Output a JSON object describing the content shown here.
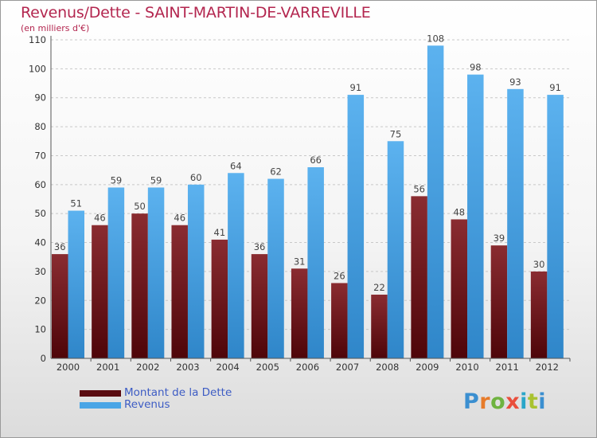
{
  "chart_data": {
    "type": "bar",
    "title": "Revenus/Dette - SAINT-MARTIN-DE-VARREVILLE",
    "subtitle": "(en milliers d'€)",
    "categories": [
      "2000",
      "2001",
      "2002",
      "2003",
      "2004",
      "2005",
      "2006",
      "2007",
      "2008",
      "2009",
      "2010",
      "2011",
      "2012"
    ],
    "series": [
      {
        "name": "Montant de la Dette",
        "color": "#6b0f14",
        "values": [
          36,
          46,
          50,
          46,
          41,
          36,
          31,
          26,
          22,
          56,
          48,
          39,
          30
        ]
      },
      {
        "name": "Revenus",
        "color": "#4aa5e6",
        "values": [
          51,
          59,
          59,
          60,
          64,
          62,
          66,
          91,
          75,
          108,
          98,
          93,
          91
        ]
      }
    ],
    "ylim": [
      0,
      110
    ],
    "yticks": [
      0,
      10,
      20,
      30,
      40,
      50,
      60,
      70,
      80,
      90,
      100,
      110
    ],
    "grid": true,
    "legend": "bottom-left"
  },
  "logo_text": "Proxiti"
}
